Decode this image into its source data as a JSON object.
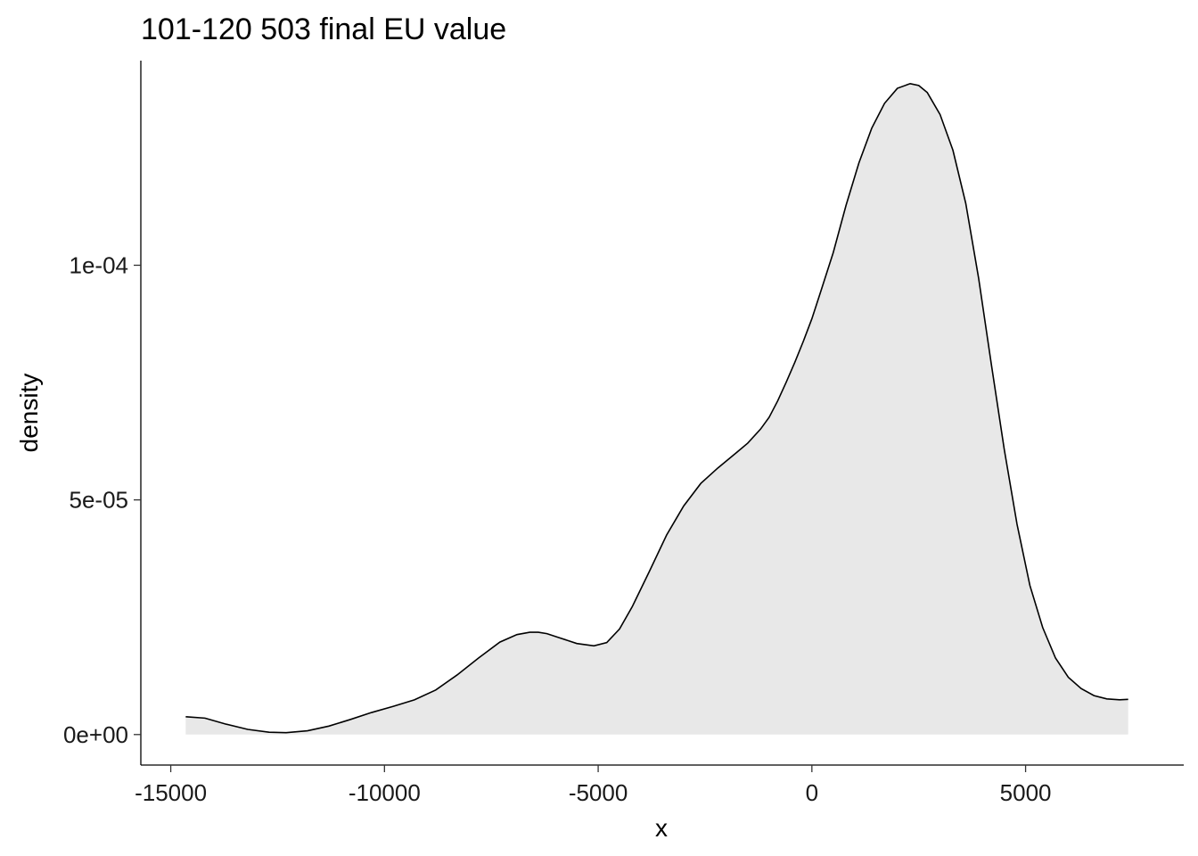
{
  "chart_data": {
    "type": "area",
    "title": "101-120 503 final EU value",
    "xlabel": "x",
    "ylabel": "density",
    "xlim": [
      -15700,
      8700
    ],
    "ylim": [
      -6.5e-06,
      0.0001436
    ],
    "x_ticks": [
      {
        "value": -15000,
        "label": "-15000"
      },
      {
        "value": -10000,
        "label": "-10000"
      },
      {
        "value": -5000,
        "label": "-5000"
      },
      {
        "value": 0,
        "label": "0"
      },
      {
        "value": 5000,
        "label": "5000"
      }
    ],
    "y_ticks": [
      {
        "value": 0,
        "label": "0e+00"
      },
      {
        "value": 5e-05,
        "label": "5e-05"
      },
      {
        "value": 0.0001,
        "label": "1e-04"
      }
    ],
    "grid": false,
    "legend": "none",
    "fill_color": "#e8e8e8",
    "line_color": "#000000",
    "series": [
      {
        "x": [
          -14650,
          -14200,
          -13700,
          -13200,
          -12700,
          -12300,
          -11800,
          -11300,
          -10800,
          -10300,
          -9800,
          -9300,
          -8800,
          -8300,
          -7800,
          -7300,
          -6900,
          -6600,
          -6400,
          -6200,
          -5900,
          -5500,
          -5100,
          -4800,
          -4500,
          -4200,
          -3800,
          -3400,
          -3000,
          -2600,
          -2200,
          -1800,
          -1500,
          -1200,
          -1000,
          -800,
          -600,
          -400,
          -200,
          0,
          200,
          500,
          800,
          1100,
          1400,
          1700,
          2000,
          2300,
          2500,
          2700,
          3000,
          3300,
          3600,
          3900,
          4200,
          4500,
          4800,
          5100,
          5400,
          5700,
          6000,
          6300,
          6600,
          6900,
          7200,
          7400
        ],
        "y": [
          3.8e-06,
          3.5e-06,
          2.2e-06,
          1.1e-06,
          5e-07,
          4e-07,
          8e-07,
          1.8e-06,
          3.2e-06,
          4.7e-06,
          6e-06,
          7.4e-06,
          9.5e-06,
          1.27e-05,
          1.63e-05,
          1.97e-05,
          2.13e-05,
          2.18e-05,
          2.18e-05,
          2.15e-05,
          2.06e-05,
          1.94e-05,
          1.89e-05,
          1.96e-05,
          2.25e-05,
          2.73e-05,
          3.48e-05,
          4.25e-05,
          4.87e-05,
          5.35e-05,
          5.68e-05,
          5.98e-05,
          6.21e-05,
          6.51e-05,
          6.76e-05,
          7.11e-05,
          7.51e-05,
          7.93e-05,
          8.38e-05,
          8.86e-05,
          9.42e-05,
          0.0001027,
          0.0001128,
          0.0001218,
          0.0001292,
          0.0001345,
          0.0001377,
          0.0001387,
          0.0001383,
          0.0001368,
          0.0001321,
          0.0001245,
          0.0001132,
          9.73e-05,
          7.88e-05,
          6.08e-05,
          4.48e-05,
          3.18e-05,
          2.28e-05,
          1.63e-05,
          1.22e-05,
          9.8e-06,
          8.3e-06,
          7.6e-06,
          7.4e-06,
          7.5e-06
        ]
      }
    ]
  }
}
